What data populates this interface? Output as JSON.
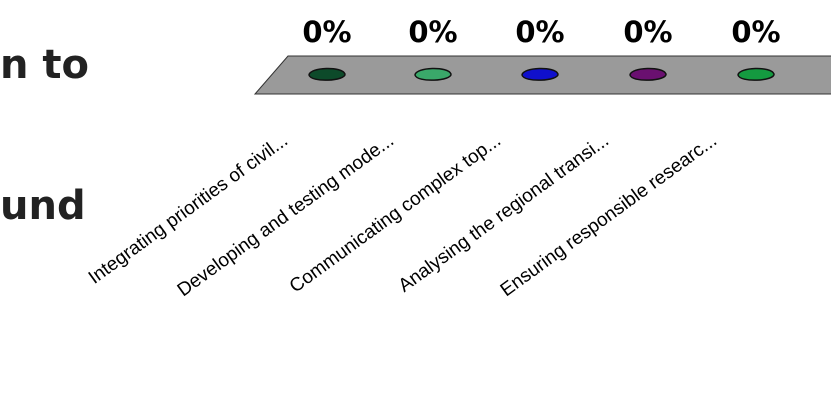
{
  "slide": {
    "text_line_1": "n to",
    "text_line_2": "und"
  },
  "chart_data": {
    "type": "bar",
    "categories": [
      "Integrating priorities of civil...",
      "Developing and testing mode...",
      "Communicating complex top...",
      "Analysing the regional transi...",
      "Ensuring responsible researc..."
    ],
    "values": [
      0,
      0,
      0,
      0,
      0
    ],
    "data_labels": [
      "0%",
      "0%",
      "0%",
      "0%",
      "0%"
    ],
    "colors": [
      "#0d4a2a",
      "#3aa86a",
      "#1010cc",
      "#6a1070",
      "#149a40"
    ],
    "base_color": "#9a9a9a",
    "title": "",
    "xlabel": "",
    "ylabel": ""
  }
}
